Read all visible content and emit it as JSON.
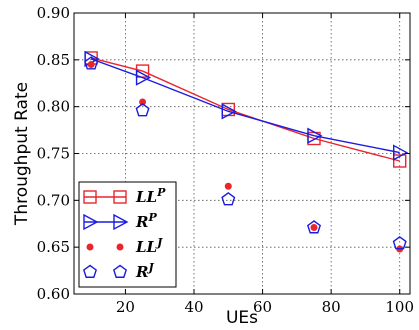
{
  "chart_data": {
    "type": "line",
    "xlabel": "UEs",
    "ylabel": "Throughput Rate",
    "xlim": [
      5,
      103
    ],
    "ylim": [
      0.6,
      0.9
    ],
    "xticks": [
      20,
      40,
      60,
      80,
      100
    ],
    "yticks": [
      0.6,
      0.65,
      0.7,
      0.75,
      0.8,
      0.85,
      0.9
    ],
    "xtick_labels": [
      "20",
      "40",
      "60",
      "80",
      "100"
    ],
    "ytick_labels": [
      "0.60",
      "0.65",
      "0.70",
      "0.75",
      "0.80",
      "0.85",
      "0.90"
    ],
    "grid": true,
    "legend_position": "bottom-left",
    "series": [
      {
        "name": "LL",
        "sup": "P",
        "style": "line",
        "marker": "square",
        "color": "#e8262c",
        "points": [
          [
            10,
            0.852
          ],
          [
            25,
            0.838
          ],
          [
            50,
            0.797
          ],
          [
            75,
            0.766
          ],
          [
            100,
            0.742
          ]
        ]
      },
      {
        "name": "R",
        "sup": "P",
        "style": "line",
        "marker": "triangle-right",
        "color": "#1c1ce0",
        "points": [
          [
            10,
            0.851
          ],
          [
            25,
            0.831
          ],
          [
            50,
            0.795
          ],
          [
            75,
            0.769
          ],
          [
            100,
            0.751
          ]
        ]
      },
      {
        "name": "LL",
        "sup": "J",
        "style": "marker",
        "marker": "dot",
        "color": "#e8262c",
        "points": [
          [
            10,
            0.845
          ],
          [
            25,
            0.805
          ],
          [
            50,
            0.715
          ],
          [
            75,
            0.671
          ],
          [
            100,
            0.648
          ]
        ]
      },
      {
        "name": "R",
        "sup": "J",
        "style": "marker",
        "marker": "pentagon",
        "color": "#1c1ce0",
        "points": [
          [
            10,
            0.846
          ],
          [
            25,
            0.796
          ],
          [
            50,
            0.701
          ],
          [
            75,
            0.671
          ],
          [
            100,
            0.654
          ]
        ]
      }
    ]
  }
}
